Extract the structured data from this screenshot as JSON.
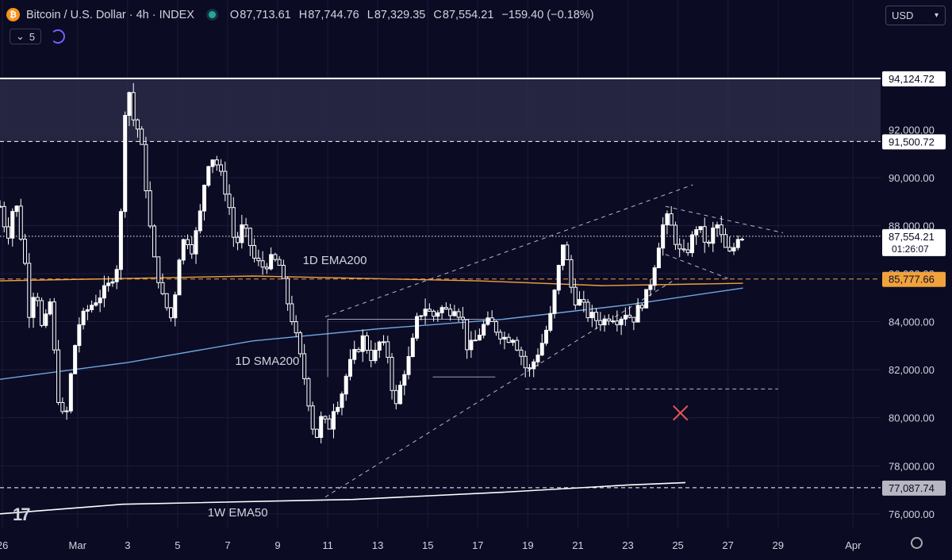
{
  "header": {
    "symbol": "Bitcoin / U.S. Dollar · 4h · INDEX",
    "open_label": "O",
    "open": "87,713.61",
    "high_label": "H",
    "high": "87,744.76",
    "low_label": "L",
    "low": "87,329.35",
    "close_label": "C",
    "close": "87,554.21",
    "change": "−159.40 (−0.18%)",
    "indicator_count": "5"
  },
  "currency": "USD",
  "colors": {
    "background": "#0b0b24",
    "candle": "#ffffff",
    "ema200": "#f0a23c",
    "sma200": "#6fa8dc",
    "ema50w": "#ffffff",
    "marker": "#e05555"
  },
  "chart_data": {
    "type": "candlestick",
    "ylim": [
      75400,
      96400
    ],
    "y_ticks": [
      {
        "value": 76000,
        "label": "76,000.00"
      },
      {
        "value": 78000,
        "label": "78,000.00"
      },
      {
        "value": 80000,
        "label": "80,000.00"
      },
      {
        "value": 82000,
        "label": "82,000.00"
      },
      {
        "value": 84000,
        "label": "84,000.00"
      },
      {
        "value": 86000,
        "label": "86,000.00"
      },
      {
        "value": 88000,
        "label": "88,000.00"
      },
      {
        "value": 90000,
        "label": "90,000.00"
      },
      {
        "value": 92000,
        "label": "92,000.00"
      }
    ],
    "x_ticks": [
      {
        "day": 26,
        "label": "26"
      },
      {
        "day": 29,
        "label": "Mar"
      },
      {
        "day": 31,
        "label": "3"
      },
      {
        "day": 33,
        "label": "5"
      },
      {
        "day": 35,
        "label": "7"
      },
      {
        "day": 37,
        "label": "9"
      },
      {
        "day": 39,
        "label": "11"
      },
      {
        "day": 41,
        "label": "13"
      },
      {
        "day": 43,
        "label": "15"
      },
      {
        "day": 45,
        "label": "17"
      },
      {
        "day": 47,
        "label": "19"
      },
      {
        "day": 49,
        "label": "21"
      },
      {
        "day": 51,
        "label": "23"
      },
      {
        "day": 53,
        "label": "25"
      },
      {
        "day": 55,
        "label": "27"
      },
      {
        "day": 57,
        "label": "29"
      },
      {
        "day": 60,
        "label": "Apr"
      }
    ],
    "x_range_days": [
      25.9,
      61.1
    ],
    "close_path": [
      [
        25.9,
        88800
      ],
      [
        26.2,
        87500
      ],
      [
        26.5,
        89200
      ],
      [
        26.9,
        86400
      ],
      [
        27.1,
        84000
      ],
      [
        27.3,
        85800
      ],
      [
        27.6,
        83500
      ],
      [
        27.9,
        84800
      ],
      [
        28.2,
        81000
      ],
      [
        28.5,
        79600
      ],
      [
        28.7,
        81500
      ],
      [
        29.0,
        83800
      ],
      [
        29.4,
        84500
      ],
      [
        29.8,
        85000
      ],
      [
        30.2,
        85400
      ],
      [
        30.6,
        86400
      ],
      [
        30.8,
        89500
      ],
      [
        30.95,
        94500
      ],
      [
        31.2,
        92500
      ],
      [
        31.5,
        91800
      ],
      [
        31.8,
        89000
      ],
      [
        32.0,
        86800
      ],
      [
        32.2,
        86000
      ],
      [
        32.4,
        85000
      ],
      [
        32.6,
        84500
      ],
      [
        32.8,
        84000
      ],
      [
        33.0,
        86500
      ],
      [
        33.3,
        87600
      ],
      [
        33.6,
        87000
      ],
      [
        33.9,
        88500
      ],
      [
        34.1,
        90000
      ],
      [
        34.3,
        91000
      ],
      [
        34.6,
        90500
      ],
      [
        34.9,
        89500
      ],
      [
        35.1,
        88600
      ],
      [
        35.3,
        87000
      ],
      [
        35.6,
        88000
      ],
      [
        35.9,
        87200
      ],
      [
        36.1,
        86500
      ],
      [
        36.4,
        86300
      ],
      [
        36.8,
        86600
      ],
      [
        37.1,
        86300
      ],
      [
        37.3,
        85200
      ],
      [
        37.6,
        84000
      ],
      [
        37.9,
        82500
      ],
      [
        38.1,
        81500
      ],
      [
        38.3,
        80300
      ],
      [
        38.5,
        79000
      ],
      [
        38.8,
        80200
      ],
      [
        39.0,
        79300
      ],
      [
        39.2,
        80400
      ],
      [
        39.5,
        80800
      ],
      [
        39.8,
        82000
      ],
      [
        40.1,
        82700
      ],
      [
        40.4,
        83300
      ],
      [
        40.8,
        82400
      ],
      [
        41.1,
        83200
      ],
      [
        41.4,
        82600
      ],
      [
        41.7,
        80300
      ],
      [
        42.0,
        81800
      ],
      [
        42.3,
        82600
      ],
      [
        42.6,
        84200
      ],
      [
        42.9,
        84600
      ],
      [
        43.2,
        84200
      ],
      [
        43.5,
        84600
      ],
      [
        43.8,
        84400
      ],
      [
        44.1,
        84700
      ],
      [
        44.4,
        84000
      ],
      [
        44.6,
        82800
      ],
      [
        44.9,
        83200
      ],
      [
        45.2,
        83800
      ],
      [
        45.5,
        84000
      ],
      [
        45.8,
        83600
      ],
      [
        46.1,
        83300
      ],
      [
        46.4,
        83400
      ],
      [
        46.7,
        82700
      ],
      [
        47.0,
        81800
      ],
      [
        47.3,
        82500
      ],
      [
        47.6,
        83200
      ],
      [
        47.9,
        84200
      ],
      [
        48.2,
        86000
      ],
      [
        48.4,
        87300
      ],
      [
        48.6,
        86300
      ],
      [
        48.8,
        85000
      ],
      [
        49.1,
        84800
      ],
      [
        49.4,
        84300
      ],
      [
        49.7,
        84100
      ],
      [
        50.0,
        84000
      ],
      [
        50.3,
        84300
      ],
      [
        50.6,
        84100
      ],
      [
        50.9,
        84400
      ],
      [
        51.2,
        84100
      ],
      [
        51.5,
        84700
      ],
      [
        51.8,
        85200
      ],
      [
        52.0,
        86100
      ],
      [
        52.3,
        87600
      ],
      [
        52.5,
        88400
      ],
      [
        52.8,
        87800
      ],
      [
        53.0,
        87000
      ],
      [
        53.2,
        86700
      ],
      [
        53.5,
        87200
      ],
      [
        53.7,
        88000
      ],
      [
        54.0,
        87600
      ],
      [
        54.2,
        87000
      ],
      [
        54.5,
        88200
      ],
      [
        54.8,
        87300
      ],
      [
        55.0,
        86700
      ],
      [
        55.2,
        87000
      ],
      [
        55.4,
        87600
      ],
      [
        55.6,
        87554
      ]
    ],
    "ema200_1d": {
      "label": "1D EMA200",
      "points": [
        [
          25.9,
          85700
        ],
        [
          36.0,
          85900
        ],
        [
          45.0,
          85700
        ],
        [
          50.0,
          85500
        ],
        [
          55.6,
          85600
        ]
      ]
    },
    "sma200_1d": {
      "label": "1D SMA200",
      "points": [
        [
          25.9,
          81600
        ],
        [
          31.0,
          82300
        ],
        [
          36.0,
          83200
        ],
        [
          41.0,
          83700
        ],
        [
          46.0,
          84100
        ],
        [
          51.0,
          84700
        ],
        [
          55.6,
          85400
        ]
      ]
    },
    "ema50_1w": {
      "label": "1W EMA50",
      "points": [
        [
          25.9,
          76000
        ],
        [
          30.8,
          76400
        ],
        [
          40.0,
          76600
        ],
        [
          46.0,
          76900
        ],
        [
          51.0,
          77200
        ],
        [
          53.3,
          77300
        ]
      ]
    },
    "price_lines": [
      {
        "value": 94124.72,
        "label": "94,124.72",
        "style": "solid"
      },
      {
        "value": 91500.72,
        "label": "91,500.72",
        "style": "dashed"
      },
      {
        "value": 87554.21,
        "label": "87,554.21",
        "countdown": "01:26:07",
        "style": "dotted"
      },
      {
        "value": 85777.66,
        "label": "85,777.66",
        "style": "dashed-orange"
      },
      {
        "value": 77087.74,
        "label": "77,087.74",
        "style": "dashed"
      }
    ],
    "resistance_zone": [
      91500.72,
      94124.72
    ],
    "channel": {
      "lower": [
        [
          38.9,
          76700
        ],
        [
          52.8,
          85700
        ]
      ],
      "upper": [
        [
          38.9,
          84200
        ],
        [
          53.6,
          89700
        ]
      ]
    },
    "wedge": {
      "upper": [
        [
          52.5,
          88800
        ],
        [
          57.2,
          87700
        ]
      ],
      "lower": [
        [
          52.5,
          86800
        ],
        [
          55.0,
          85800
        ]
      ]
    },
    "support_box": {
      "x": [
        39.0,
        45.7
      ],
      "y": [
        81700,
        84100
      ]
    },
    "target_line": {
      "value": 81200,
      "x": [
        46.9,
        57.0
      ]
    },
    "x_marker": {
      "day": 53.1,
      "value": 80200
    },
    "annotations": [
      {
        "text": "1D EMA200",
        "day": 38.0,
        "value": 86400
      },
      {
        "text": "1D SMA200",
        "day": 35.3,
        "value": 82200
      },
      {
        "text": "1W EMA50",
        "day": 34.2,
        "value": 75900
      }
    ]
  }
}
